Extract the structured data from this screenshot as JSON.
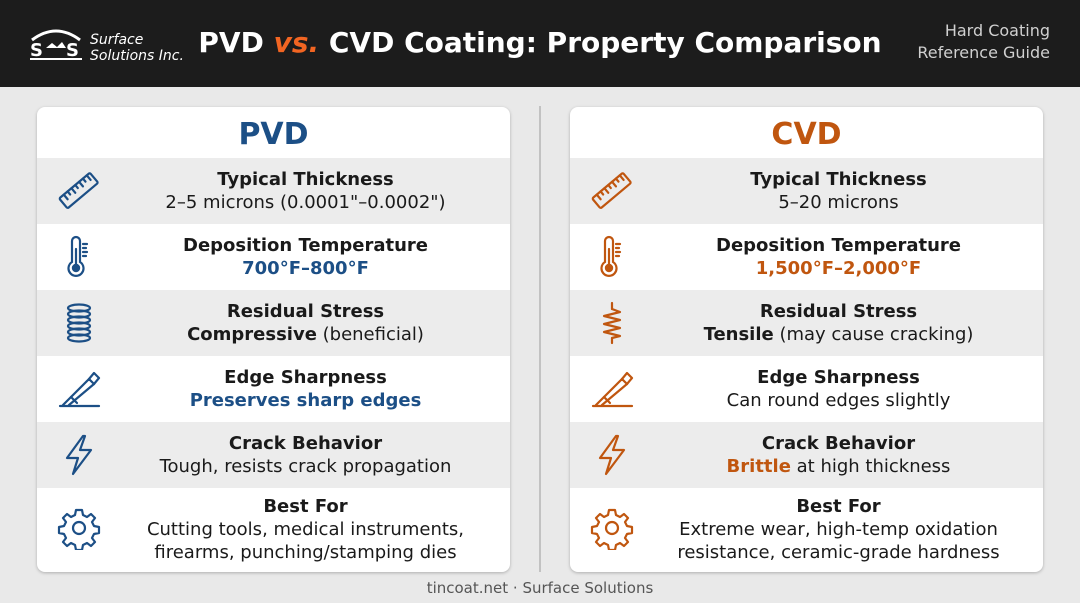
{
  "header": {
    "logo_line1": "Surface",
    "logo_line2": "Solutions Inc.",
    "title_part1": "PVD",
    "title_vs": "vs.",
    "title_part2": "CVD Coating: Property Comparison",
    "guide_line1": "Hard Coating",
    "guide_line2": "Reference Guide"
  },
  "colors": {
    "pvd": "#1c4f86",
    "cvd": "#c0560f",
    "vs": "#f26522"
  },
  "pvd": {
    "heading": "PVD",
    "rows": [
      {
        "icon": "ruler-icon",
        "label": "Typical Thickness",
        "value": "2–5 microns (0.0001\"–0.0002\")"
      },
      {
        "icon": "thermometer-icon",
        "label": "Deposition Temperature",
        "value": "700°F–800°F"
      },
      {
        "icon": "coil-spring-icon",
        "label": "Residual Stress",
        "value_bold": "Compressive",
        "value_rest": " (beneficial)"
      },
      {
        "icon": "blade-edge-icon",
        "label": "Edge Sharpness",
        "value": "Preserves sharp edges"
      },
      {
        "icon": "lightning-bolt-icon",
        "label": "Crack Behavior",
        "value": "Tough, resists crack propagation"
      },
      {
        "icon": "gear-icon",
        "label": "Best For",
        "value_line1": "Cutting tools, medical instruments,",
        "value_line2": "firearms, punching/stamping dies"
      }
    ]
  },
  "cvd": {
    "heading": "CVD",
    "rows": [
      {
        "icon": "ruler-icon",
        "label": "Typical Thickness",
        "value": "5–20 microns"
      },
      {
        "icon": "thermometer-icon",
        "label": "Deposition Temperature",
        "value": "1,500°F–2,000°F"
      },
      {
        "icon": "tension-spring-icon",
        "label": "Residual Stress",
        "value_bold": "Tensile",
        "value_rest": " (may cause cracking)"
      },
      {
        "icon": "blade-edge-icon",
        "label": "Edge Sharpness",
        "value": "Can round edges slightly"
      },
      {
        "icon": "lightning-bolt-icon",
        "label": "Crack Behavior",
        "value_bold": "Brittle",
        "value_rest": " at high thickness"
      },
      {
        "icon": "gear-icon",
        "label": "Best For",
        "value_line1": "Extreme wear, high-temp oxidation",
        "value_line2": "resistance, ceramic-grade hardness"
      }
    ]
  },
  "footer": {
    "text": "tincoat.net · Surface Solutions"
  }
}
